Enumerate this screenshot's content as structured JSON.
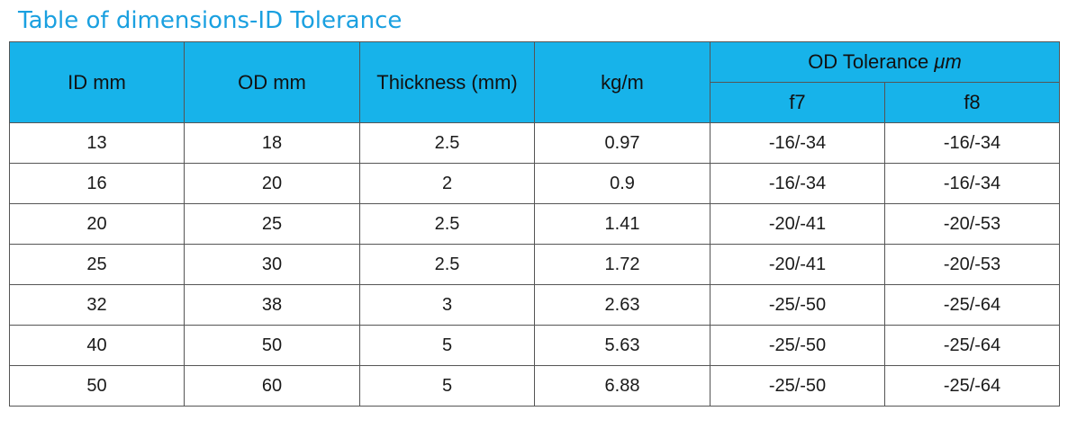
{
  "title": "Table of dimensions-ID Tolerance",
  "header": {
    "id": "ID mm",
    "od": "OD mm",
    "thickness": "Thickness (mm)",
    "kgm": "kg/m",
    "od_tolerance": "OD Tolerance",
    "od_tolerance_unit": "μm",
    "f7": "f7",
    "f8": "f8"
  },
  "rows": [
    {
      "id": "13",
      "od": "18",
      "thickness": "2.5",
      "kgm": "0.97",
      "f7": "-16/-34",
      "f8": "-16/-34"
    },
    {
      "id": "16",
      "od": "20",
      "thickness": "2",
      "kgm": "0.9",
      "f7": "-16/-34",
      "f8": "-16/-34"
    },
    {
      "id": "20",
      "od": "25",
      "thickness": "2.5",
      "kgm": "1.41",
      "f7": "-20/-41",
      "f8": "-20/-53"
    },
    {
      "id": "25",
      "od": "30",
      "thickness": "2.5",
      "kgm": "1.72",
      "f7": "-20/-41",
      "f8": "-20/-53"
    },
    {
      "id": "32",
      "od": "38",
      "thickness": "3",
      "kgm": "2.63",
      "f7": "-25/-50",
      "f8": "-25/-64"
    },
    {
      "id": "40",
      "od": "50",
      "thickness": "5",
      "kgm": "5.63",
      "f7": "-25/-50",
      "f8": "-25/-64"
    },
    {
      "id": "50",
      "od": "60",
      "thickness": "5",
      "kgm": "6.88",
      "f7": "-25/-50",
      "f8": "-25/-64"
    }
  ],
  "colors": {
    "title": "#1aa0e0",
    "header_bg": "#17b3ea",
    "border": "#555555"
  }
}
